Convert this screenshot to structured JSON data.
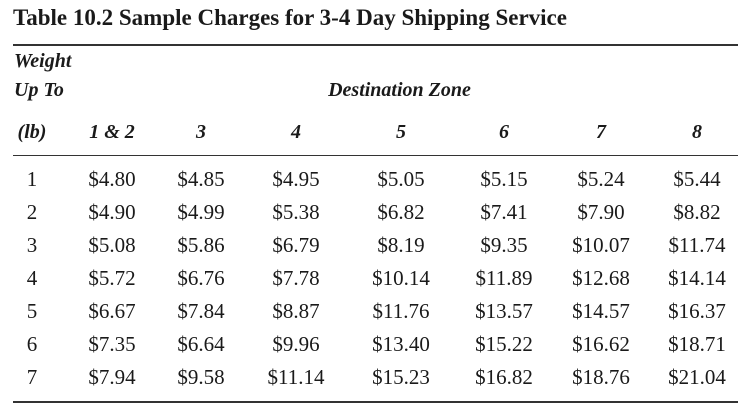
{
  "title": "Table 10.2  Sample Charges for 3-4 Day Shipping Service",
  "header": {
    "weight_line1": "Weight",
    "weight_line2": "Up To",
    "destination_zone": "Destination Zone",
    "columns": [
      "(lb)",
      "1 & 2",
      "3",
      "4",
      "5",
      "6",
      "7",
      "8"
    ]
  },
  "rows": [
    [
      "1",
      "$4.80",
      "$4.85",
      "$4.95",
      "$5.05",
      "$5.15",
      "$5.24",
      "$5.44"
    ],
    [
      "2",
      "$4.90",
      "$4.99",
      "$5.38",
      "$6.82",
      "$7.41",
      "$7.90",
      "$8.82"
    ],
    [
      "3",
      "$5.08",
      "$5.86",
      "$6.79",
      "$8.19",
      "$9.35",
      "$10.07",
      "$11.74"
    ],
    [
      "4",
      "$5.72",
      "$6.76",
      "$7.78",
      "$10.14",
      "$11.89",
      "$12.68",
      "$14.14"
    ],
    [
      "5",
      "$6.67",
      "$7.84",
      "$8.87",
      "$11.76",
      "$13.57",
      "$14.57",
      "$16.37"
    ],
    [
      "6",
      "$7.35",
      "$6.64",
      "$9.96",
      "$13.40",
      "$15.22",
      "$16.62",
      "$18.71"
    ],
    [
      "7",
      "$7.94",
      "$9.58",
      "$11.14",
      "$15.23",
      "$16.82",
      "$18.76",
      "$21.04"
    ]
  ]
}
